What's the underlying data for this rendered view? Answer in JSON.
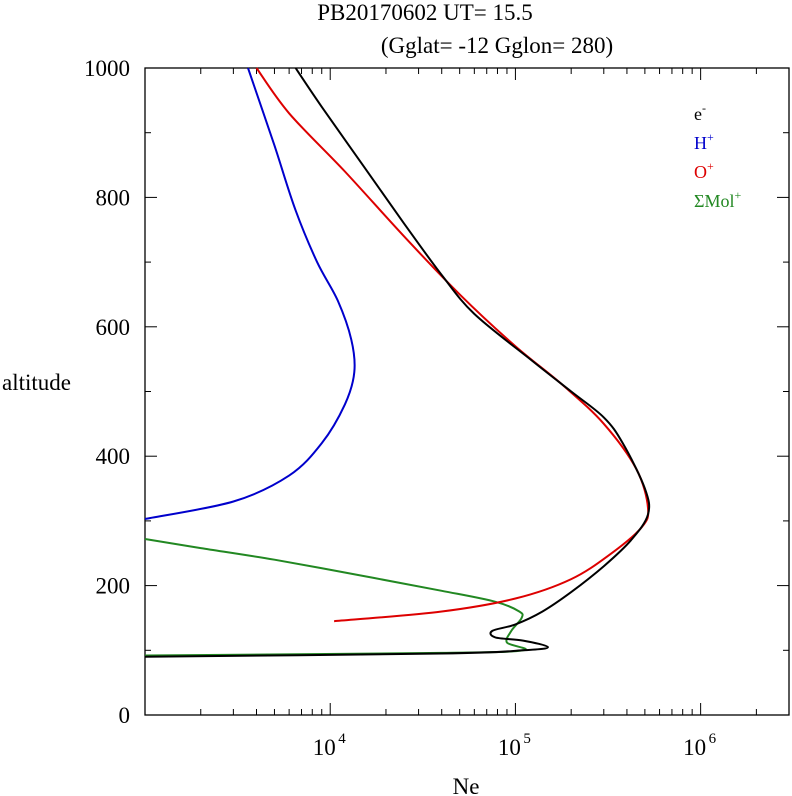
{
  "chart_data": {
    "type": "line",
    "title_line1": "PB20170602   UT=  15.5",
    "title_line2": "(Gglat= -12   Gglon=  280)",
    "xlabel": "Ne",
    "ylabel": "altitude",
    "x_scale": "log",
    "xlim": [
      1000,
      3000000
    ],
    "ylim": [
      0,
      1000
    ],
    "x_ticks": [
      {
        "base": "10",
        "exp": "4",
        "value": 10000
      },
      {
        "base": "10",
        "exp": "5",
        "value": 100000
      },
      {
        "base": "10",
        "exp": "6",
        "value": 1000000
      }
    ],
    "y_ticks": [
      {
        "label": "0",
        "value": 0
      },
      {
        "label": "200",
        "value": 200
      },
      {
        "label": "400",
        "value": 400
      },
      {
        "label": "600",
        "value": 600
      },
      {
        "label": "800",
        "value": 800
      },
      {
        "label": "1000",
        "value": 1000
      }
    ],
    "legend_position": "top-right",
    "series": [
      {
        "name": "e",
        "sup": "-",
        "color": "#000000",
        "points": [
          [
            1000,
            90
          ],
          [
            40000,
            95
          ],
          [
            110000,
            100
          ],
          [
            150000,
            105
          ],
          [
            110000,
            115
          ],
          [
            78000,
            120
          ],
          [
            75000,
            130
          ],
          [
            100000,
            140
          ],
          [
            140000,
            160
          ],
          [
            200000,
            190
          ],
          [
            300000,
            230
          ],
          [
            420000,
            270
          ],
          [
            520000,
            310
          ],
          [
            500000,
            350
          ],
          [
            380000,
            420
          ],
          [
            300000,
            460
          ],
          [
            200000,
            500
          ],
          [
            120000,
            550
          ],
          [
            60000,
            620
          ],
          [
            40000,
            680
          ],
          [
            25000,
            760
          ],
          [
            15000,
            850
          ],
          [
            9000,
            940
          ],
          [
            6500,
            1000
          ]
        ]
      },
      {
        "name": "H",
        "sup": "+",
        "color": "#0000cc",
        "points": [
          [
            1000,
            303
          ],
          [
            3000,
            330
          ],
          [
            6000,
            370
          ],
          [
            9000,
            420
          ],
          [
            12000,
            480
          ],
          [
            13500,
            530
          ],
          [
            13000,
            580
          ],
          [
            11000,
            640
          ],
          [
            8500,
            700
          ],
          [
            6500,
            780
          ],
          [
            5000,
            880
          ],
          [
            3600,
            1000
          ]
        ]
      },
      {
        "name": "O",
        "sup": "+",
        "color": "#dd0000",
        "points": [
          [
            10500,
            145
          ],
          [
            40000,
            160
          ],
          [
            100000,
            180
          ],
          [
            200000,
            210
          ],
          [
            330000,
            250
          ],
          [
            480000,
            290
          ],
          [
            520000,
            320
          ],
          [
            450000,
            380
          ],
          [
            300000,
            450
          ],
          [
            180000,
            510
          ],
          [
            100000,
            570
          ],
          [
            50000,
            650
          ],
          [
            25000,
            740
          ],
          [
            12000,
            840
          ],
          [
            6000,
            930
          ],
          [
            4000,
            1000
          ]
        ]
      },
      {
        "name": "ΣMol",
        "sup": "+",
        "color": "#228822",
        "points": [
          [
            1000,
            92
          ],
          [
            40000,
            96
          ],
          [
            110000,
            100
          ],
          [
            90000,
            112
          ],
          [
            95000,
            130
          ],
          [
            108000,
            150
          ],
          [
            105000,
            160
          ],
          [
            78000,
            175
          ],
          [
            40000,
            192
          ],
          [
            15000,
            215
          ],
          [
            5000,
            240
          ],
          [
            2000,
            258
          ],
          [
            1000,
            272
          ]
        ]
      }
    ]
  }
}
